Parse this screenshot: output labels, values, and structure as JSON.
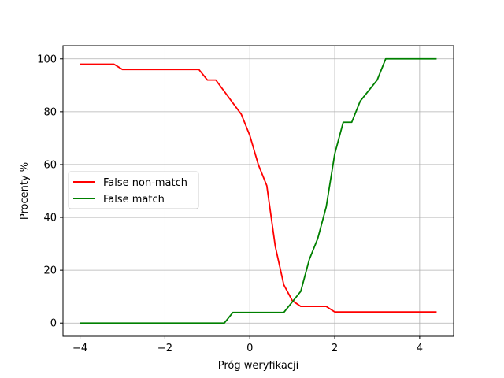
{
  "chart_data": {
    "type": "line",
    "title": "",
    "xlabel": "Próg weryfikacji",
    "ylabel": "Procenty %",
    "xlim": [
      -4.4,
      4.8
    ],
    "ylim": [
      -5,
      105
    ],
    "xticks": [
      -4,
      -2,
      0,
      2,
      4
    ],
    "xtick_labels": [
      "−4",
      "−2",
      "0",
      "2",
      "4"
    ],
    "yticks": [
      0,
      20,
      40,
      60,
      80,
      100
    ],
    "ytick_labels": [
      "0",
      "20",
      "40",
      "60",
      "80",
      "100"
    ],
    "grid": true,
    "legend_position": "center-left",
    "series": [
      {
        "name": "False non-match",
        "color": "#ff0000",
        "points": [
          [
            -4.0,
            98
          ],
          [
            -3.2,
            98
          ],
          [
            -3.0,
            96
          ],
          [
            -1.2,
            96
          ],
          [
            -1.0,
            92
          ],
          [
            -0.8,
            92
          ],
          [
            -0.2,
            79
          ],
          [
            0.0,
            71
          ],
          [
            0.2,
            60
          ],
          [
            0.4,
            52
          ],
          [
            0.6,
            29
          ],
          [
            0.8,
            14.5
          ],
          [
            1.0,
            8.5
          ],
          [
            1.2,
            6.3
          ],
          [
            1.8,
            6.3
          ],
          [
            2.0,
            4.2
          ],
          [
            4.4,
            4.2
          ]
        ]
      },
      {
        "name": "False match",
        "color": "#008000",
        "points": [
          [
            -4.0,
            0
          ],
          [
            -0.6,
            0
          ],
          [
            -0.4,
            4
          ],
          [
            0.8,
            4
          ],
          [
            1.0,
            8
          ],
          [
            1.2,
            12
          ],
          [
            1.4,
            24
          ],
          [
            1.6,
            32
          ],
          [
            1.8,
            44
          ],
          [
            2.0,
            64
          ],
          [
            2.2,
            76
          ],
          [
            2.4,
            76
          ],
          [
            2.6,
            84
          ],
          [
            2.8,
            88
          ],
          [
            3.0,
            92
          ],
          [
            3.2,
            100
          ],
          [
            4.4,
            100
          ]
        ]
      }
    ]
  }
}
